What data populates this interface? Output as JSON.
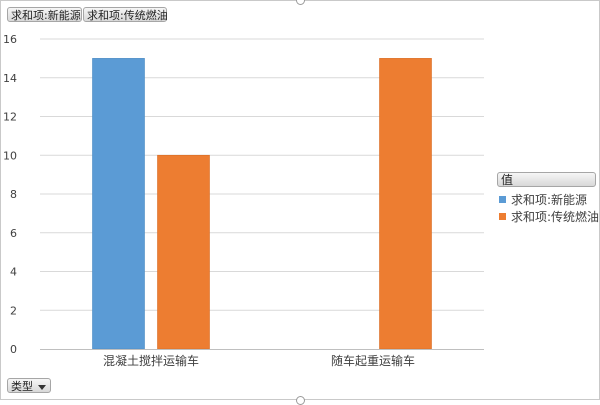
{
  "field_buttons": {
    "value_1": "求和项:新能源",
    "value_2": "求和项:传统燃油",
    "axis": "类型",
    "legend_header": "值"
  },
  "colors": {
    "series_1": "#5b9bd5",
    "series_2": "#ed7d31",
    "gridline": "#d9d9d9",
    "axis": "#bfbfbf"
  },
  "chart_data": {
    "type": "bar",
    "categories": [
      "混凝土搅拌运输车",
      "随车起重运输车"
    ],
    "series": [
      {
        "name": "求和项:新能源",
        "values": [
          15,
          null
        ]
      },
      {
        "name": "求和项:传统燃油",
        "values": [
          10,
          15
        ]
      }
    ],
    "ylim": [
      0,
      16
    ],
    "yticks": [
      0,
      2,
      4,
      6,
      8,
      10,
      12,
      14,
      16
    ],
    "grid": true,
    "legend": {
      "title": "值",
      "placement": "right"
    }
  }
}
